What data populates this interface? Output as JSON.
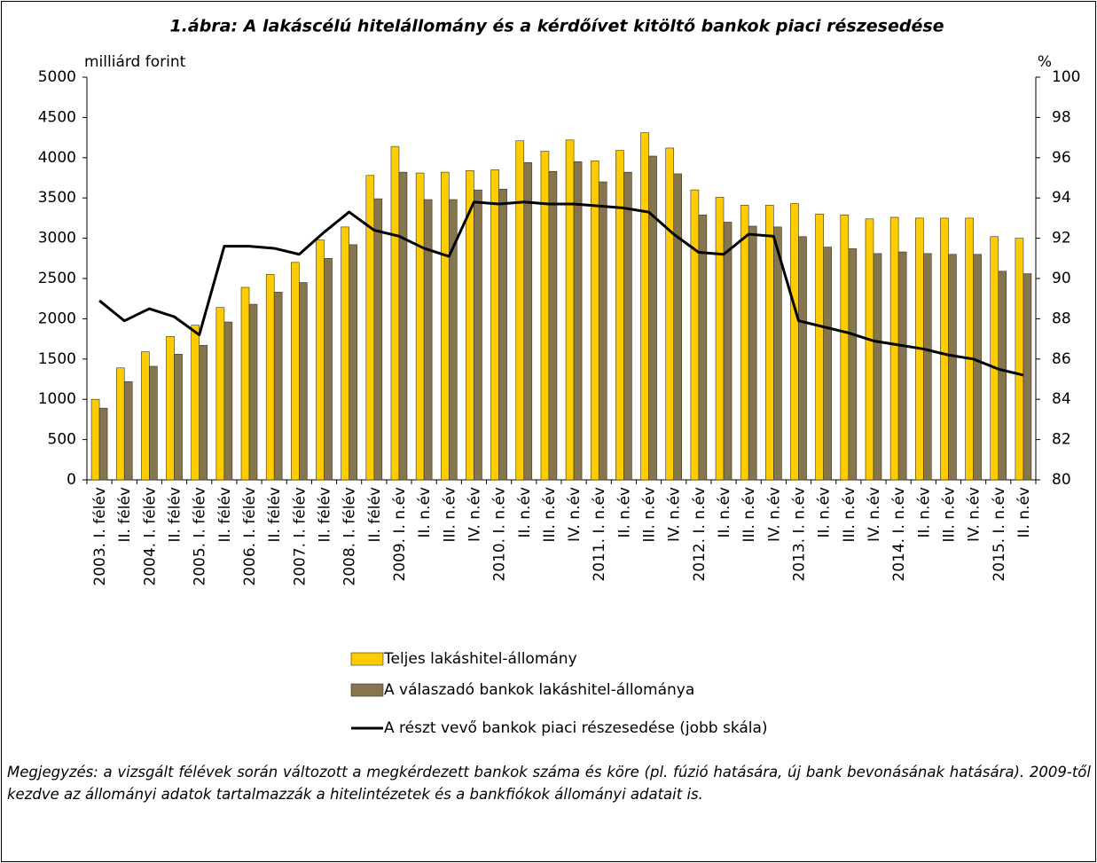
{
  "chart_data": {
    "type": "bar",
    "title": "1.ábra: A lakáscélú hitelállomány és a kérdőívet kitöltő bankok piaci részesedése",
    "y_label": "milliárd forint",
    "y2_label": "%",
    "categories": [
      "2003. I. félév",
      "II. félév",
      "2004. I. félév",
      "II. félév",
      "2005. I. félév",
      "II. félév",
      "2006. I. félév",
      "II. félév",
      "2007. I. félév",
      "II. félév",
      "2008. I. félév",
      "II. félév",
      "2009. I. n.év",
      "II. n.év",
      "III. n.év",
      "IV. n.év",
      "2010. I. n.év",
      "II. n.év",
      "III. n.év",
      "IV. n.év",
      "2011. I. n.év",
      "II. n.év",
      "III. n.év",
      "IV. n.év",
      "2012. I. n.év",
      "II. n.év",
      "III. n.év",
      "IV. n.év",
      "2013. I. n.év",
      "II. n.év",
      "III. n.év",
      "IV. n.év",
      "2014. I. n.év",
      "II. n.év",
      "III. n.év",
      "IV. n.év",
      "2015. I. n.év",
      "II. n.év"
    ],
    "series": [
      {
        "name": "Teljes lakáshitel-állomány",
        "color": "#ffcc00",
        "type": "bar",
        "values": [
          1000,
          1390,
          1590,
          1780,
          1920,
          2140,
          2390,
          2550,
          2700,
          2980,
          3140,
          3780,
          4140,
          3810,
          3820,
          3840,
          3850,
          4210,
          4080,
          4220,
          3960,
          4090,
          4310,
          4120,
          3600,
          3510,
          3410,
          3410,
          3430,
          3300,
          3290,
          3240,
          3260,
          3250,
          3250,
          3250,
          3020,
          3000
        ]
      },
      {
        "name": "A válaszadó bankok lakáshitel-állománya",
        "color": "#857650",
        "type": "bar",
        "values": [
          890,
          1220,
          1410,
          1560,
          1670,
          1960,
          2180,
          2330,
          2450,
          2750,
          2920,
          3490,
          3820,
          3480,
          3480,
          3600,
          3610,
          3940,
          3830,
          3950,
          3700,
          3820,
          4020,
          3800,
          3290,
          3200,
          3150,
          3140,
          3020,
          2890,
          2870,
          2810,
          2830,
          2810,
          2800,
          2800,
          2590,
          2560
        ]
      },
      {
        "name": "A részt vevő bankok piaci részesedése (jobb skála)",
        "color": "#000000",
        "type": "line",
        "axis": "y2",
        "values": [
          88.9,
          87.9,
          88.5,
          88.1,
          87.2,
          91.6,
          91.6,
          91.5,
          91.2,
          92.3,
          93.3,
          92.4,
          92.1,
          91.5,
          91.1,
          93.8,
          93.7,
          93.8,
          93.7,
          93.7,
          93.6,
          93.5,
          93.3,
          92.2,
          91.3,
          91.2,
          92.2,
          92.1,
          87.9,
          87.6,
          87.3,
          86.9,
          86.7,
          86.5,
          86.2,
          86.0,
          85.5,
          85.2
        ]
      }
    ],
    "ylim": [
      0,
      5000
    ],
    "yticks": [
      0,
      500,
      1000,
      1500,
      2000,
      2500,
      3000,
      3500,
      4000,
      4500,
      5000
    ],
    "y2lim": [
      80,
      100
    ],
    "y2ticks": [
      80,
      82,
      84,
      86,
      88,
      90,
      92,
      94,
      96,
      98,
      100
    ],
    "note": "Megjegyzés: a vizsgált félévek során változott a megkérdezett bankok száma és köre (pl. fúzió hatására, új bank bevonásának hatására). 2009-től kezdve az állományi adatok tartalmazzák a hitelintézetek és a bankfiókok állományi adatait is."
  }
}
